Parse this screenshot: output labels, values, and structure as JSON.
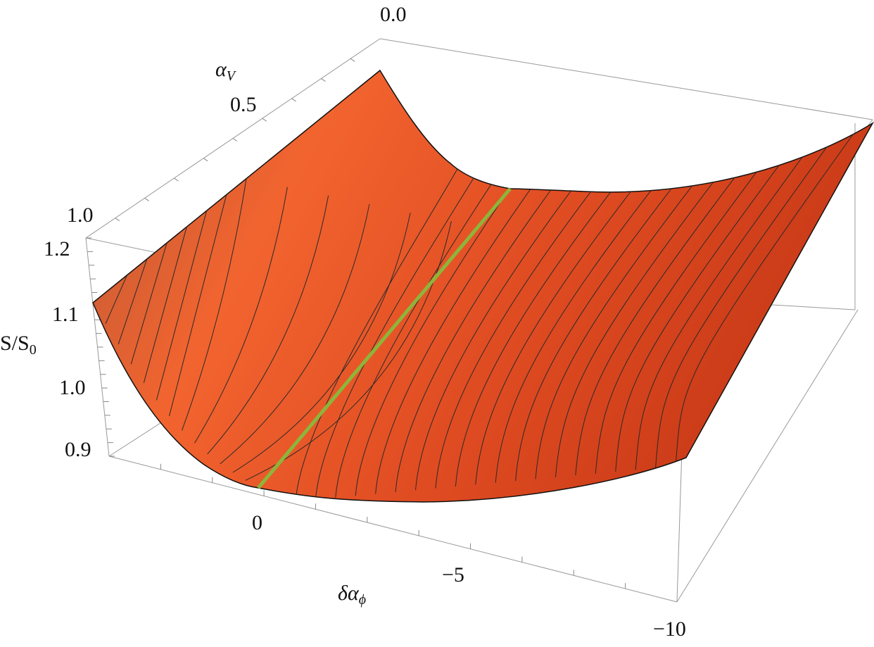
{
  "chart_data": {
    "type": "surface",
    "title": "",
    "axes": {
      "x": {
        "label": "δα",
        "label_sub": "ϕ",
        "ticks": [
          "0",
          "−5",
          "−10"
        ],
        "range": [
          0,
          -10
        ]
      },
      "y": {
        "label": "α",
        "label_sub": "V",
        "ticks": [
          "0.0",
          "0.5",
          "1.0"
        ],
        "range": [
          0,
          1
        ]
      },
      "z": {
        "label": "S/S",
        "label_sub": "0",
        "ticks": [
          "0.9",
          "1.0",
          "1.1",
          "1.2"
        ],
        "range": [
          0.88,
          1.2
        ]
      }
    },
    "surface_color": "#e8552a",
    "highlight_line_color": "#8db53a",
    "highlight_line": "minimum valley along δα_ϕ = 0 … diagonal",
    "contour_count": 20,
    "box": true
  }
}
